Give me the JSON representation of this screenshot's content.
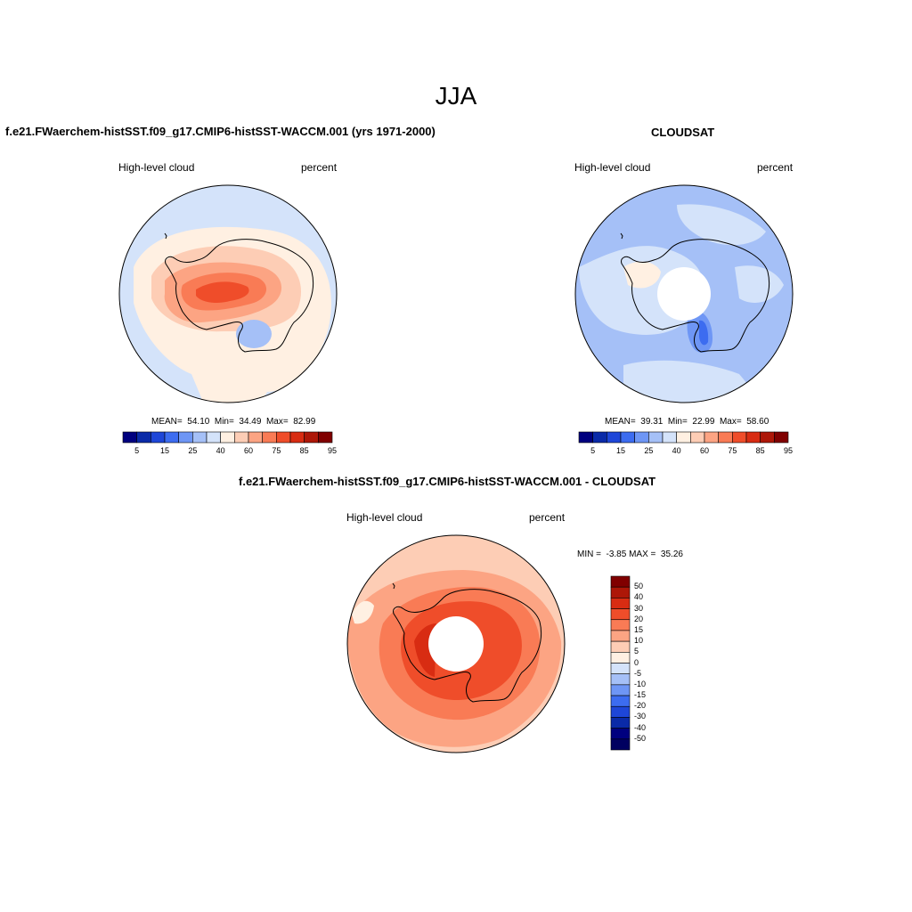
{
  "figure": {
    "title": "JJA"
  },
  "panels": [
    {
      "title": "f.e21.FWaerchem-histSST.f09_g17.CMIP6-histSST-WACCM.001 (yrs 1971-2000)",
      "left_label": "High-level cloud",
      "right_label": "percent",
      "stats": "MEAN=  54.10  Min=  34.49  Max=  82.99"
    },
    {
      "title": "CLOUDSAT",
      "left_label": "High-level cloud",
      "right_label": "percent",
      "stats": "MEAN=  39.31  Min=  22.99  Max=  58.60"
    },
    {
      "title": "f.e21.FWaerchem-histSST.f09_g17.CMIP6-histSST-WACCM.001 - CLOUDSAT",
      "left_label": "High-level cloud",
      "right_label": "percent",
      "stats": "MIN =  -3.85 MAX =  35.26"
    }
  ],
  "colorbar_main": {
    "labels": [
      "5",
      "15",
      "25",
      "40",
      "60",
      "75",
      "85",
      "95"
    ],
    "colors": [
      "#00007f",
      "#0a2aa8",
      "#1e46d8",
      "#3c6cf0",
      "#6e96f5",
      "#a5c0f7",
      "#d4e3fa",
      "#fff0e2",
      "#fdcdb5",
      "#fca483",
      "#f97b55",
      "#ef4d2a",
      "#d82c12",
      "#ad1708",
      "#800000"
    ]
  },
  "colorbar_diff": {
    "labels": [
      "50",
      "40",
      "30",
      "20",
      "15",
      "10",
      "5",
      "0",
      "-5",
      "-10",
      "-15",
      "-20",
      "-30",
      "-40",
      "-50"
    ],
    "colors": [
      "#800000",
      "#ad1708",
      "#d82c12",
      "#ef4d2a",
      "#f97b55",
      "#fca483",
      "#fdcdb5",
      "#fff0e2",
      "#d4e3fa",
      "#a5c0f7",
      "#6e96f5",
      "#3c6cf0",
      "#1e46d8",
      "#0a2aa8",
      "#00007f",
      "#000060"
    ]
  },
  "chart_data": [
    {
      "type": "heatmap",
      "projection": "south-polar-stereographic",
      "title": "f.e21.FWaerchem-histSST.f09_g17.CMIP6-histSST-WACCM.001 (yrs 1971-2000)",
      "variable": "High-level cloud",
      "units": "percent",
      "mean": 54.1,
      "min": 34.49,
      "max": 82.99,
      "levels": [
        5,
        10,
        15,
        20,
        25,
        30,
        40,
        50,
        60,
        70,
        75,
        80,
        85,
        90,
        95
      ]
    },
    {
      "type": "heatmap",
      "projection": "south-polar-stereographic",
      "title": "CLOUDSAT",
      "variable": "High-level cloud",
      "units": "percent",
      "mean": 39.31,
      "min": 22.99,
      "max": 58.6,
      "levels": [
        5,
        10,
        15,
        20,
        25,
        30,
        40,
        50,
        60,
        70,
        75,
        80,
        85,
        90,
        95
      ]
    },
    {
      "type": "heatmap",
      "projection": "south-polar-stereographic",
      "title": "f.e21.FWaerchem-histSST.f09_g17.CMIP6-histSST-WACCM.001 - CLOUDSAT",
      "variable": "High-level cloud",
      "units": "percent",
      "min": -3.85,
      "max": 35.26,
      "levels": [
        -50,
        -40,
        -30,
        -20,
        -15,
        -10,
        -5,
        0,
        5,
        10,
        15,
        20,
        30,
        40,
        50
      ]
    }
  ]
}
